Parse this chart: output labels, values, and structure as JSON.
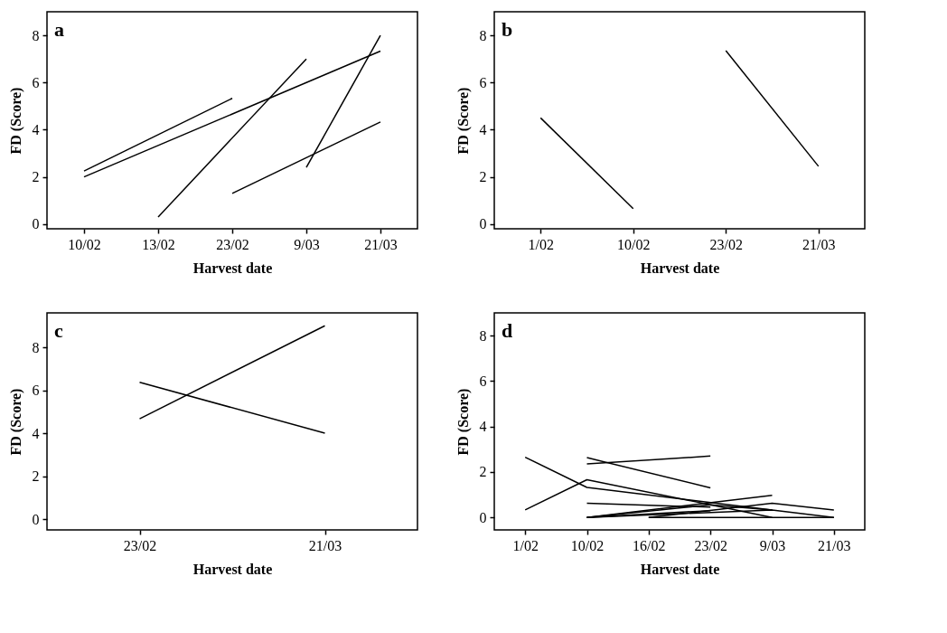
{
  "chart_data": [
    {
      "type": "line",
      "annotations": [
        "a"
      ],
      "xlabel": "Harvest date",
      "ylabel": "FD (Score)",
      "categories": [
        "10/02",
        "13/02",
        "23/02",
        "9/03",
        "21/03"
      ],
      "ylim": [
        -0.2,
        9
      ],
      "yticks": [
        0,
        2,
        4,
        6,
        8
      ],
      "series": [
        {
          "color": "#000000",
          "x": [
            "10/02",
            "23/02"
          ],
          "values": [
            2.25,
            5.33
          ]
        },
        {
          "color": "#000000",
          "x": [
            "10/02",
            "21/03"
          ],
          "values": [
            2.0,
            7.33
          ]
        },
        {
          "color": "#000000",
          "x": [
            "13/02",
            "9/03"
          ],
          "values": [
            0.3,
            7.0
          ]
        },
        {
          "color": "#000000",
          "x": [
            "23/02",
            "21/03"
          ],
          "values": [
            1.3,
            4.33
          ]
        },
        {
          "color": "#000000",
          "x": [
            "9/03",
            "21/03"
          ],
          "values": [
            2.4,
            8.0
          ]
        }
      ]
    },
    {
      "type": "line",
      "annotations": [
        "b"
      ],
      "xlabel": "Harvest date",
      "ylabel": "FD (Score)",
      "categories": [
        "1/02",
        "10/02",
        "23/02",
        "21/03"
      ],
      "ylim": [
        -0.2,
        9
      ],
      "yticks": [
        0,
        2,
        4,
        6,
        8
      ],
      "series": [
        {
          "color": "#000000",
          "x": [
            "1/02",
            "10/02"
          ],
          "values": [
            4.5,
            0.65
          ]
        },
        {
          "color": "#000000",
          "x": [
            "23/02",
            "21/03"
          ],
          "values": [
            7.35,
            2.45
          ]
        }
      ]
    },
    {
      "type": "line",
      "annotations": [
        "c"
      ],
      "xlabel": "Harvest date",
      "ylabel": "FD (Score)",
      "categories": [
        "23/02",
        "21/03"
      ],
      "ylim": [
        -0.5,
        9.6
      ],
      "yticks": [
        0,
        2,
        4,
        6,
        8
      ],
      "series": [
        {
          "color": "#000000",
          "x": [
            "23/02",
            "21/03"
          ],
          "values": [
            6.37,
            4.0
          ]
        },
        {
          "color": "#000000",
          "x": [
            "23/02",
            "21/03"
          ],
          "values": [
            4.67,
            9.0
          ]
        }
      ]
    },
    {
      "type": "line",
      "annotations": [
        "d"
      ],
      "xlabel": "Harvest date",
      "ylabel": "FD (Score)",
      "categories": [
        "1/02",
        "10/02",
        "16/02",
        "23/02",
        "9/03",
        "21/03"
      ],
      "ylim": [
        -0.55,
        9
      ],
      "yticks": [
        0,
        2,
        4,
        6,
        8
      ],
      "series": [
        {
          "color": "#000000",
          "x": [
            "1/02",
            "10/02",
            "9/03"
          ],
          "values": [
            2.65,
            1.32,
            0.33
          ]
        },
        {
          "color": "#000000",
          "x": [
            "1/02",
            "10/02",
            "9/03"
          ],
          "values": [
            0.33,
            1.66,
            0
          ]
        },
        {
          "color": "#000000",
          "x": [
            "10/02",
            "23/02"
          ],
          "values": [
            2.35,
            2.7
          ]
        },
        {
          "color": "#000000",
          "x": [
            "10/02",
            "23/02"
          ],
          "values": [
            2.63,
            1.3
          ]
        },
        {
          "color": "#000000",
          "x": [
            "10/02",
            "23/02"
          ],
          "values": [
            0.62,
            0.45
          ]
        },
        {
          "color": "#000000",
          "x": [
            "10/02",
            "9/03"
          ],
          "values": [
            0,
            0.97
          ]
        },
        {
          "color": "#000000",
          "x": [
            "10/02",
            "23/02",
            "9/03"
          ],
          "values": [
            0,
            0.55,
            0.33
          ]
        },
        {
          "color": "#000000",
          "x": [
            "10/02",
            "9/03",
            "21/03"
          ],
          "values": [
            0,
            0.33,
            0
          ]
        },
        {
          "color": "#000000",
          "x": [
            "16/02",
            "9/03",
            "21/03"
          ],
          "values": [
            0,
            0.62,
            0.33
          ]
        },
        {
          "color": "#000000",
          "x": [
            "16/02",
            "21/03"
          ],
          "values": [
            0,
            0
          ]
        },
        {
          "color": "#000000",
          "x": [
            "10/02",
            "23/02"
          ],
          "values": [
            0,
            0.3
          ]
        }
      ]
    }
  ]
}
